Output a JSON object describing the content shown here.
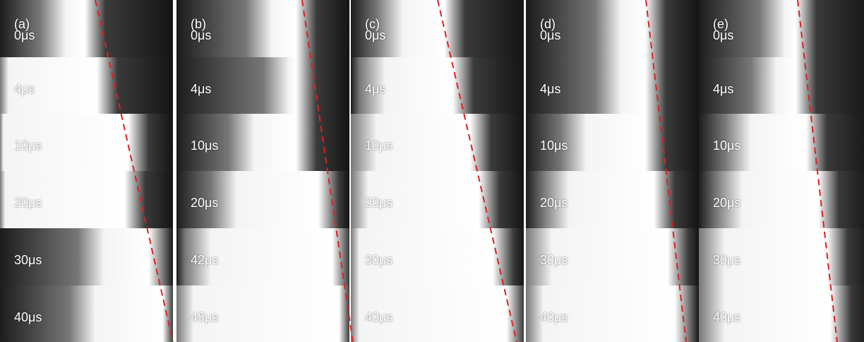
{
  "panels": [
    {
      "label": "(a)",
      "times": [
        "0μs",
        "4μs",
        "10μs",
        "20μs",
        "30μs",
        "40μs"
      ]
    },
    {
      "label": "(b)",
      "times": [
        "0μs",
        "4μs",
        "10μs",
        "20μs",
        "42μs",
        "48μs"
      ]
    },
    {
      "label": "(c)",
      "times": [
        "0μs",
        "4μs",
        "10μs",
        "20μs",
        "30μs",
        "40μs"
      ]
    },
    {
      "label": "(d)",
      "times": [
        "0μs",
        "4μs",
        "10μs",
        "20μs",
        "30μs",
        "40μs"
      ]
    },
    {
      "label": "(e)",
      "times": [
        "0μs",
        "4μs",
        "10μs",
        "20μs",
        "30μs",
        "40μs"
      ]
    }
  ]
}
